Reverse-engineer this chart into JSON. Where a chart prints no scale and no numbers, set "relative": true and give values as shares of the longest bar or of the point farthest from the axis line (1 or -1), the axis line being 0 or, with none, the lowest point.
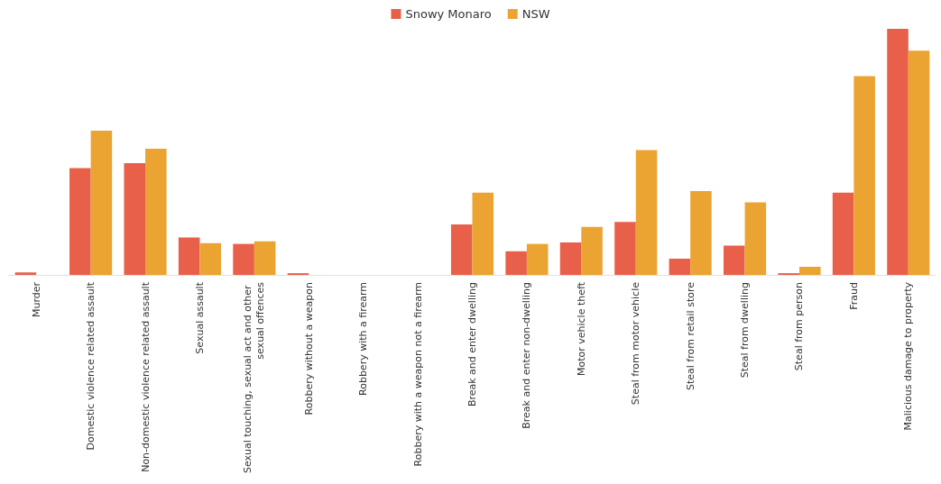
{
  "chart_data": {
    "type": "bar",
    "relative": true,
    "legend": "top",
    "categories": [
      "Murder",
      "Domestic violence related assault",
      "Non-domestic violence related assault",
      "Sexual assault",
      "Sexual touching, sexual act and other sexual offences",
      "Robbery without a weapon",
      "Robbery with a firearm",
      "Robbery with a weapon not a firearm",
      "Break and enter dwelling",
      "Break and enter non-dwelling",
      "Motor vehicle theft",
      "Steal from motor vehicle",
      "Steal from retail store",
      "Steal from dwelling",
      "Steal from person",
      "Fraud",
      "Malicious damage to property"
    ],
    "series": [
      {
        "name": "Snowy Monaro",
        "color": "#e8604a",
        "values": [
          0.01,
          0.434,
          0.454,
          0.152,
          0.126,
          0.007,
          0,
          0,
          0.205,
          0.096,
          0.132,
          0.215,
          0.066,
          0.119,
          0.007,
          0.334,
          1
        ]
      },
      {
        "name": "NSW",
        "color": "#eba432",
        "values": [
          0,
          0.586,
          0.513,
          0.129,
          0.136,
          0,
          0,
          0,
          0.334,
          0.126,
          0.195,
          0.507,
          0.341,
          0.295,
          0.033,
          0.808,
          0.911
        ]
      }
    ]
  }
}
